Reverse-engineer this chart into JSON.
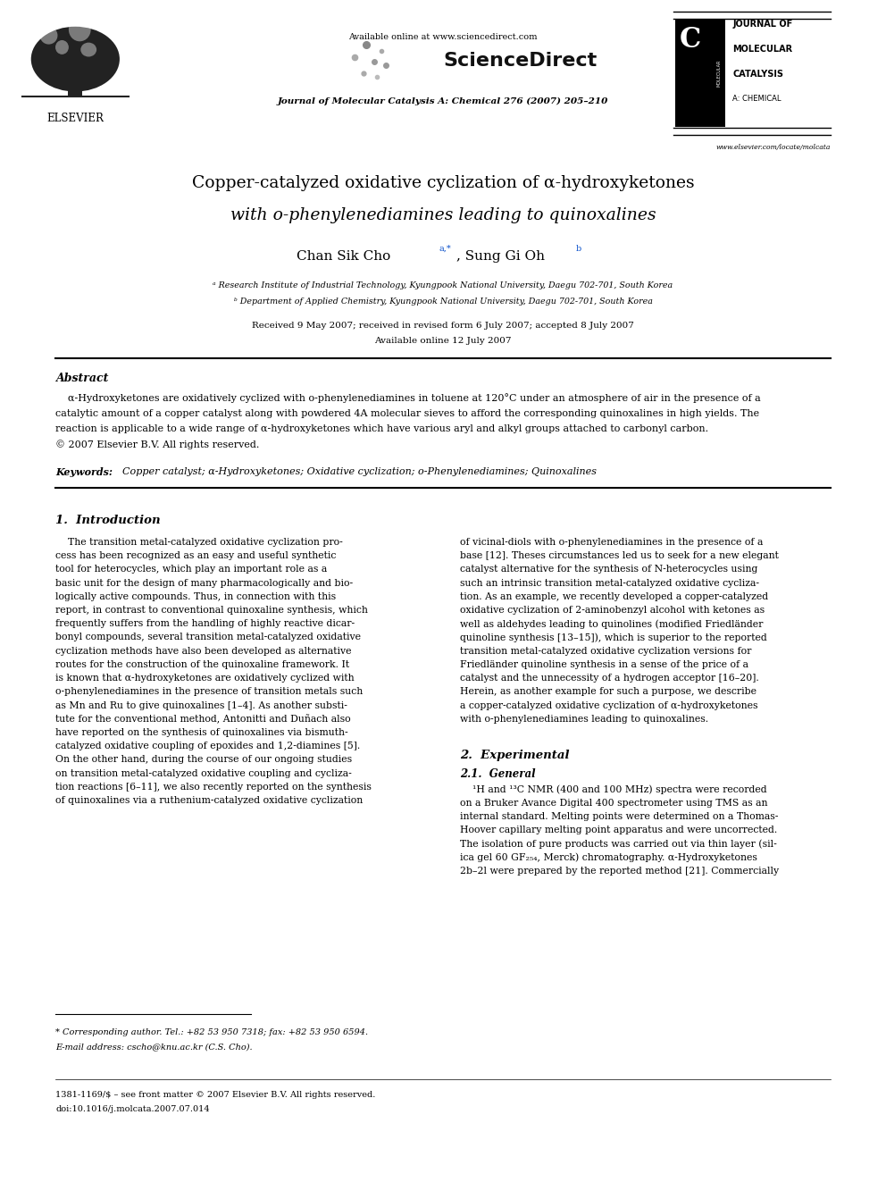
{
  "page_width": 9.92,
  "page_height": 13.23,
  "bg_color": "#ffffff",
  "available_online": "Available online at www.sciencedirect.com",
  "sciencedirect": "ScienceDirect",
  "journal_header": "Journal of Molecular Catalysis A: Chemical 276 (2007) 205–210",
  "website": "www.elsevier.com/locate/molcata",
  "elsevier_label": "ELSEVIER",
  "jmc_lines": [
    "JOURNAL OF",
    "MOLECULAR",
    "CATALYSIS",
    "A: CHEMICAL"
  ],
  "title_line1": "Copper-catalyzed oxidative cyclization of α-hydroxyketones",
  "title_line2_pre": "with ",
  "title_line2_italic": "o",
  "title_line2_post": "-phenylenediamines leading to quinoxalines",
  "author_name1": "Chan Sik Cho",
  "author_sup1": "a,*",
  "author_sep": ", Sung Gi Oh",
  "author_sup2": "b",
  "affil_a": "ᵃ Research Institute of Industrial Technology, Kyungpook National University, Daegu 702-701, South Korea",
  "affil_b": "ᵇ Department of Applied Chemistry, Kyungpook National University, Daegu 702-701, South Korea",
  "received": "Received 9 May 2007; received in revised form 6 July 2007; accepted 8 July 2007",
  "available": "Available online 12 July 2007",
  "abstract_title": "Abstract",
  "abstract_indent": "    α-Hydroxyketones are oxidatively cyclized with ο-phenylenediamines in toluene at 120°C under an atmosphere of air in the presence of a",
  "abstract_line2": "catalytic amount of a copper catalyst along with powdered 4A molecular sieves to afford the corresponding quinoxalines in high yields. The",
  "abstract_line3": "reaction is applicable to a wide range of α-hydroxyketones which have various aryl and alkyl groups attached to carbonyl carbon.",
  "abstract_copyright": "© 2007 Elsevier B.V. All rights reserved.",
  "keywords_label": "Keywords:",
  "keywords_text": "  Copper catalyst; α-Hydroxyketones; Oxidative cyclization; ο-Phenylenediamines; Quinoxalines",
  "sec1_title": "1.  Introduction",
  "sec1_left_lines": [
    "    The transition metal-catalyzed oxidative cyclization pro-",
    "cess has been recognized as an easy and useful synthetic",
    "tool for heterocycles, which play an important role as a",
    "basic unit for the design of many pharmacologically and bio-",
    "logically active compounds. Thus, in connection with this",
    "report, in contrast to conventional quinoxaline synthesis, which",
    "frequently suffers from the handling of highly reactive dicar-",
    "bonyl compounds, several transition metal-catalyzed oxidative",
    "cyclization methods have also been developed as alternative",
    "routes for the construction of the quinoxaline framework. It",
    "is known that α-hydroxyketones are oxidatively cyclized with",
    "ο-phenylenediamines in the presence of transition metals such",
    "as Mn and Ru to give quinoxalines [1–4]. As another substi-",
    "tute for the conventional method, Antonitti and Duñach also",
    "have reported on the synthesis of quinoxalines via bismuth-",
    "catalyzed oxidative coupling of epoxides and 1,2-diamines [5].",
    "On the other hand, during the course of our ongoing studies",
    "on transition metal-catalyzed oxidative coupling and cycliza-",
    "tion reactions [6–11], we also recently reported on the synthesis",
    "of quinoxalines via a ruthenium-catalyzed oxidative cyclization"
  ],
  "sec1_right_lines": [
    "of vicinal-diols with ο-phenylenediamines in the presence of a",
    "base [12]. Theses circumstances led us to seek for a new elegant",
    "catalyst alternative for the synthesis of N-heterocycles using",
    "such an intrinsic transition metal-catalyzed oxidative cycliza-",
    "tion. As an example, we recently developed a copper-catalyzed",
    "oxidative cyclization of 2-aminobenzyl alcohol with ketones as",
    "well as aldehydes leading to quinolines (modified Friedländer",
    "quinoline synthesis [13–15]), which is superior to the reported",
    "transition metal-catalyzed oxidative cyclization versions for",
    "Friedländer quinoline synthesis in a sense of the price of a",
    "catalyst and the unnecessity of a hydrogen acceptor [16–20].",
    "Herein, as another example for such a purpose, we describe",
    "a copper-catalyzed oxidative cyclization of α-hydroxyketones",
    "with ο-phenylenediamines leading to quinoxalines."
  ],
  "sec2_title": "2.  Experimental",
  "sec21_title": "2.1.  General",
  "sec21_lines": [
    "    ¹H and ¹³C NMR (400 and 100 MHz) spectra were recorded",
    "on a Bruker Avance Digital 400 spectrometer using TMS as an",
    "internal standard. Melting points were determined on a Thomas-",
    "Hoover capillary melting point apparatus and were uncorrected.",
    "The isolation of pure products was carried out via thin layer (sil-",
    "ica gel 60 GF₂₅₄, Merck) chromatography. α-Hydroxyketones",
    "2b–2l were prepared by the reported method [21]. Commercially"
  ],
  "footnote_line1": "* Corresponding author. Tel.: +82 53 950 7318; fax: +82 53 950 6594.",
  "footnote_line2": "E-mail address: cscho@knu.ac.kr (C.S. Cho).",
  "footer_issn": "1381-1169/$ – see front matter © 2007 Elsevier B.V. All rights reserved.",
  "footer_doi": "doi:10.1016/j.molcata.2007.07.014"
}
